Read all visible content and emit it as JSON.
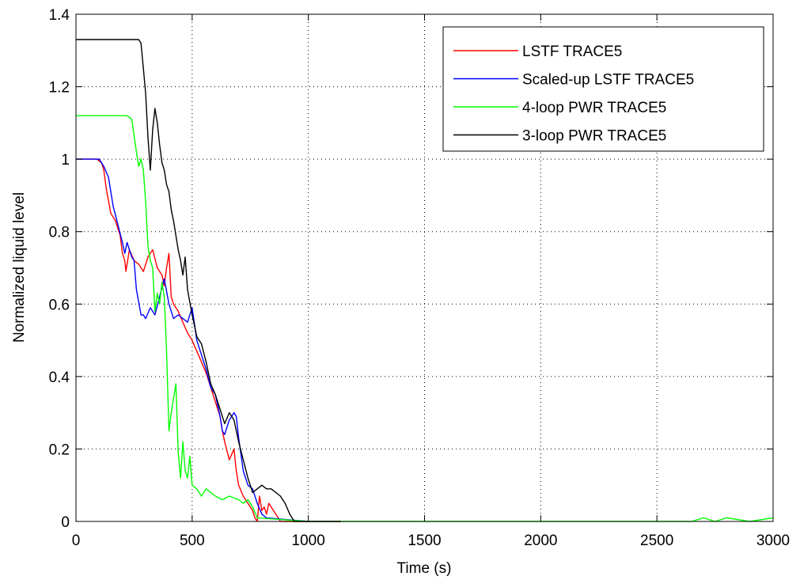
{
  "chart_data": {
    "type": "line",
    "title": "",
    "xlabel": "Time (s)",
    "ylabel": "Normalized liquid level",
    "xlim": [
      0,
      3000
    ],
    "ylim": [
      0,
      1.4
    ],
    "xticks": [
      0,
      500,
      1000,
      1500,
      2000,
      2500,
      3000
    ],
    "xtick_labels": [
      "0",
      "500",
      "1000",
      "1500",
      "2000",
      "2500",
      "3000"
    ],
    "yticks": [
      0,
      0.2,
      0.4,
      0.6,
      0.8,
      1,
      1.2,
      1.4
    ],
    "ytick_labels": [
      "0",
      "0.2",
      "0.4",
      "0.6",
      "0.8",
      "1",
      "1.2",
      "1.4"
    ],
    "grid": true,
    "legend_position": "top-right",
    "series": [
      {
        "name": "LSTF TRACE5",
        "color": "#ff0000",
        "x": [
          0,
          90,
          110,
          120,
          130,
          150,
          170,
          190,
          200,
          210,
          215,
          230,
          250,
          270,
          290,
          310,
          330,
          350,
          370,
          380,
          390,
          400,
          410,
          420,
          440,
          460,
          480,
          500,
          520,
          540,
          560,
          580,
          600,
          620,
          630,
          640,
          660,
          680,
          690,
          700,
          720,
          740,
          760,
          770,
          780,
          790,
          800,
          810,
          820,
          830,
          850,
          870,
          880,
          900,
          1000,
          1140
        ],
        "y": [
          1,
          1,
          0.99,
          0.97,
          0.92,
          0.85,
          0.83,
          0.79,
          0.74,
          0.72,
          0.69,
          0.75,
          0.72,
          0.71,
          0.69,
          0.73,
          0.75,
          0.7,
          0.68,
          0.65,
          0.7,
          0.74,
          0.62,
          0.6,
          0.58,
          0.55,
          0.52,
          0.5,
          0.47,
          0.44,
          0.41,
          0.37,
          0.33,
          0.29,
          0.25,
          0.22,
          0.17,
          0.2,
          0.14,
          0.1,
          0.07,
          0.05,
          0.03,
          0.01,
          0.0,
          0.07,
          0.03,
          0.04,
          0.02,
          0.05,
          0.03,
          0.01,
          0.0,
          0.0,
          0.0,
          0.0
        ]
      },
      {
        "name": "Scaled-up LSTF TRACE5",
        "color": "#0000ff",
        "x": [
          0,
          100,
          120,
          140,
          160,
          180,
          200,
          210,
          220,
          240,
          250,
          260,
          280,
          290,
          300,
          320,
          340,
          360,
          380,
          400,
          420,
          440,
          460,
          480,
          500,
          520,
          540,
          560,
          580,
          600,
          620,
          630,
          640,
          660,
          680,
          690,
          700,
          720,
          740,
          760,
          780,
          800,
          820,
          1000
        ],
        "y": [
          1,
          1,
          0.98,
          0.95,
          0.87,
          0.82,
          0.77,
          0.74,
          0.77,
          0.73,
          0.72,
          0.64,
          0.57,
          0.57,
          0.56,
          0.59,
          0.57,
          0.62,
          0.67,
          0.6,
          0.56,
          0.57,
          0.56,
          0.55,
          0.59,
          0.5,
          0.46,
          0.42,
          0.37,
          0.35,
          0.29,
          0.25,
          0.24,
          0.28,
          0.3,
          0.29,
          0.23,
          0.14,
          0.1,
          0.09,
          0.05,
          0.02,
          0.01,
          0.0
        ]
      },
      {
        "name": "4-loop PWR TRACE5",
        "color": "#00ff00",
        "x": [
          0,
          220,
          240,
          260,
          270,
          280,
          290,
          300,
          310,
          320,
          330,
          340,
          350,
          360,
          370,
          380,
          390,
          400,
          410,
          420,
          430,
          440,
          450,
          460,
          470,
          480,
          490,
          500,
          520,
          540,
          560,
          580,
          600,
          630,
          660,
          700,
          720,
          740,
          760,
          780,
          1000,
          2650,
          2700,
          2750,
          2800,
          2900,
          3000
        ],
        "y": [
          1.12,
          1.12,
          1.11,
          1.02,
          0.98,
          1.0,
          0.97,
          0.88,
          0.76,
          0.72,
          0.7,
          0.58,
          0.63,
          0.6,
          0.66,
          0.62,
          0.47,
          0.25,
          0.3,
          0.34,
          0.38,
          0.19,
          0.12,
          0.22,
          0.14,
          0.12,
          0.18,
          0.1,
          0.09,
          0.07,
          0.09,
          0.08,
          0.07,
          0.06,
          0.07,
          0.06,
          0.05,
          0.06,
          0.04,
          0.01,
          0.0,
          0.0,
          0.01,
          0.0,
          0.01,
          0.0,
          0.01
        ]
      },
      {
        "name": "3-loop PWR TRACE5",
        "color": "#000000",
        "x": [
          0,
          270,
          280,
          290,
          300,
          310,
          320,
          330,
          340,
          350,
          360,
          370,
          380,
          390,
          400,
          410,
          420,
          440,
          450,
          460,
          470,
          480,
          500,
          510,
          520,
          540,
          560,
          580,
          600,
          620,
          640,
          660,
          680,
          700,
          720,
          740,
          760,
          780,
          800,
          820,
          840,
          860,
          880,
          900,
          920,
          940,
          960,
          1000,
          1140
        ],
        "y": [
          1.33,
          1.33,
          1.32,
          1.25,
          1.18,
          1.06,
          0.97,
          1.08,
          1.14,
          1.1,
          1.04,
          0.99,
          0.97,
          0.93,
          0.91,
          0.86,
          0.83,
          0.75,
          0.72,
          0.68,
          0.73,
          0.64,
          0.57,
          0.54,
          0.51,
          0.49,
          0.44,
          0.38,
          0.35,
          0.31,
          0.27,
          0.3,
          0.28,
          0.22,
          0.17,
          0.12,
          0.08,
          0.09,
          0.1,
          0.09,
          0.09,
          0.08,
          0.07,
          0.05,
          0.02,
          0.0,
          0.0,
          0.0,
          0.0
        ]
      }
    ]
  }
}
